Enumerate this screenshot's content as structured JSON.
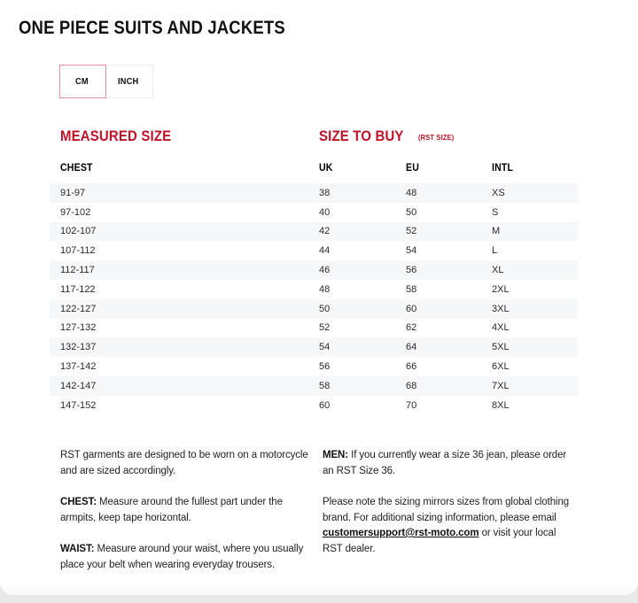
{
  "page": {
    "title": "ONE PIECE SUITS AND JACKETS"
  },
  "unit_toggle": {
    "cm_label": "CM",
    "inch_label": "INCH",
    "active": "CM"
  },
  "sections": {
    "measured_heading": "MEASURED SIZE",
    "buy_heading": "SIZE TO BUY",
    "buy_subheading": "(RST SIZE)"
  },
  "table": {
    "headers": {
      "chest": "CHEST",
      "uk": "UK",
      "eu": "EU",
      "intl": "INTL"
    },
    "rows": [
      {
        "chest": "91-97",
        "uk": "38",
        "eu": "48",
        "intl": "XS"
      },
      {
        "chest": "97-102",
        "uk": "40",
        "eu": "50",
        "intl": "S"
      },
      {
        "chest": "102-107",
        "uk": "42",
        "eu": "52",
        "intl": "M"
      },
      {
        "chest": "107-112",
        "uk": "44",
        "eu": "54",
        "intl": "L"
      },
      {
        "chest": "112-117",
        "uk": "46",
        "eu": "56",
        "intl": "XL"
      },
      {
        "chest": "117-122",
        "uk": "48",
        "eu": "58",
        "intl": "2XL"
      },
      {
        "chest": "122-127",
        "uk": "50",
        "eu": "60",
        "intl": "3XL"
      },
      {
        "chest": "127-132",
        "uk": "52",
        "eu": "62",
        "intl": "4XL"
      },
      {
        "chest": "132-137",
        "uk": "54",
        "eu": "64",
        "intl": "5XL"
      },
      {
        "chest": "137-142",
        "uk": "56",
        "eu": "66",
        "intl": "6XL"
      },
      {
        "chest": "142-147",
        "uk": "58",
        "eu": "68",
        "intl": "7XL"
      },
      {
        "chest": "147-152",
        "uk": "60",
        "eu": "70",
        "intl": "8XL"
      }
    ]
  },
  "footer": {
    "left": {
      "p1": "RST garments are designed to be worn on a motorcycle and are sized accordingly.",
      "p2_label": "CHEST:",
      "p2_text": " Measure around the fullest part under the armpits, keep tape horizontal.",
      "p3_label": "WAIST:",
      "p3_text": " Measure around your waist, where you usually place your belt when wearing everyday trousers."
    },
    "right": {
      "p1_label": "MEN:",
      "p1_text": " If you currently wear a size 36 jean, please order an RST Size 36.",
      "p2_pre": "Please note the sizing mirrors sizes from global clothing brand. For additional sizing information, please email ",
      "p2_link": "customersupport@rst-moto.com",
      "p2_post": " or visit your local RST dealer."
    }
  },
  "colors": {
    "accent_red": "#bf1128",
    "row_alt": "#f6f7f8",
    "title_text": "#111111"
  }
}
